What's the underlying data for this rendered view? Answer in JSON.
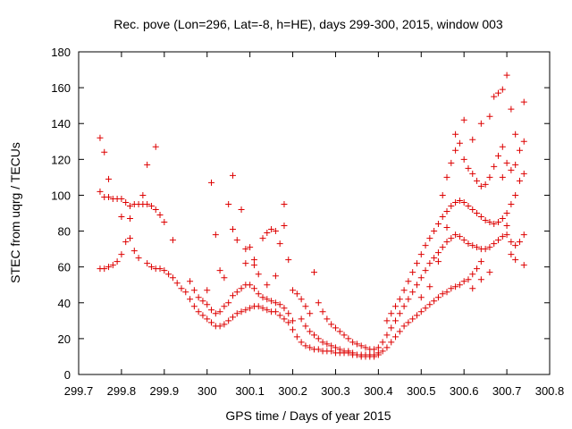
{
  "chart_data": {
    "type": "scatter",
    "title": "Rec. pove (Lon=296, Lat=-8, h=HE), days 299-300, 2015, window 003",
    "xlabel": "GPS time / Days of year 2015",
    "ylabel": "STEC from uqrg / TECUs",
    "xlim": [
      299.7,
      300.8
    ],
    "ylim": [
      0,
      180
    ],
    "xticks": [
      "299.7",
      "299.8",
      "299.9",
      "300",
      "300.1",
      "300.2",
      "300.3",
      "300.4",
      "300.5",
      "300.6",
      "300.7",
      "300.8"
    ],
    "yticks": [
      "0",
      "20",
      "40",
      "60",
      "80",
      "100",
      "120",
      "140",
      "160",
      "180"
    ],
    "grid": false,
    "legend": "none",
    "marker": "+",
    "color": "#dd0000",
    "series": [
      {
        "points": [
          [
            299.75,
            132
          ],
          [
            299.75,
            102
          ],
          [
            299.76,
            99
          ],
          [
            299.76,
            124
          ],
          [
            299.77,
            109
          ],
          [
            299.77,
            99
          ],
          [
            299.78,
            98
          ],
          [
            299.79,
            98
          ],
          [
            299.8,
            98
          ],
          [
            299.81,
            96
          ],
          [
            299.82,
            94
          ],
          [
            299.83,
            95
          ],
          [
            299.84,
            95
          ],
          [
            299.85,
            95
          ],
          [
            299.86,
            95
          ],
          [
            299.87,
            94
          ],
          [
            299.88,
            92
          ],
          [
            299.89,
            89
          ],
          [
            299.9,
            85
          ],
          [
            299.92,
            75
          ],
          [
            299.86,
            117
          ],
          [
            299.88,
            127
          ],
          [
            299.85,
            100
          ],
          [
            299.82,
            87
          ],
          [
            299.8,
            88
          ],
          [
            299.75,
            59
          ],
          [
            299.76,
            59
          ],
          [
            299.77,
            60
          ],
          [
            299.78,
            61
          ],
          [
            299.79,
            63
          ],
          [
            299.8,
            67
          ],
          [
            299.81,
            74
          ],
          [
            299.82,
            76
          ],
          [
            299.83,
            69
          ],
          [
            299.84,
            65
          ],
          [
            299.86,
            62
          ],
          [
            299.87,
            60
          ],
          [
            299.88,
            59
          ],
          [
            299.89,
            59
          ],
          [
            299.9,
            58
          ],
          [
            299.91,
            56
          ],
          [
            299.92,
            54
          ],
          [
            299.93,
            51
          ],
          [
            299.94,
            48
          ],
          [
            299.95,
            46
          ],
          [
            299.96,
            42
          ],
          [
            299.97,
            38
          ],
          [
            299.98,
            35
          ],
          [
            299.99,
            33
          ],
          [
            300.0,
            31
          ],
          [
            300.01,
            29
          ],
          [
            300.02,
            27
          ],
          [
            300.03,
            27
          ],
          [
            300.04,
            28
          ],
          [
            300.05,
            30
          ],
          [
            300.06,
            32
          ],
          [
            300.07,
            34
          ],
          [
            300.08,
            35
          ],
          [
            300.09,
            36
          ],
          [
            300.1,
            37
          ],
          [
            300.11,
            38
          ],
          [
            300.12,
            38
          ],
          [
            300.13,
            37
          ],
          [
            300.14,
            36
          ],
          [
            300.15,
            35
          ],
          [
            300.16,
            35
          ],
          [
            300.17,
            33
          ],
          [
            300.18,
            31
          ],
          [
            300.19,
            29
          ],
          [
            300.2,
            25
          ],
          [
            300.21,
            21
          ],
          [
            299.96,
            52
          ],
          [
            299.97,
            47
          ],
          [
            299.98,
            43
          ],
          [
            299.99,
            41
          ],
          [
            300.0,
            39
          ],
          [
            300.01,
            36
          ],
          [
            300.02,
            34
          ],
          [
            300.03,
            35
          ],
          [
            300.04,
            38
          ],
          [
            300.05,
            40
          ],
          [
            300.06,
            44
          ],
          [
            300.07,
            46
          ],
          [
            300.08,
            48
          ],
          [
            300.09,
            50
          ],
          [
            300.1,
            50
          ],
          [
            300.11,
            48
          ],
          [
            300.12,
            45
          ],
          [
            300.13,
            43
          ],
          [
            300.14,
            42
          ],
          [
            300.15,
            41
          ],
          [
            300.16,
            40
          ],
          [
            300.17,
            39
          ],
          [
            300.18,
            37
          ],
          [
            300.19,
            34
          ],
          [
            300.2,
            30
          ],
          [
            300.0,
            47
          ],
          [
            300.01,
            107
          ],
          [
            300.02,
            78
          ],
          [
            300.03,
            58
          ],
          [
            300.04,
            54
          ],
          [
            300.05,
            95
          ],
          [
            300.06,
            111
          ],
          [
            300.07,
            75
          ],
          [
            300.08,
            92
          ],
          [
            300.09,
            70
          ],
          [
            300.1,
            71
          ],
          [
            300.11,
            64
          ],
          [
            300.11,
            61
          ],
          [
            300.12,
            56
          ],
          [
            300.13,
            76
          ],
          [
            300.14,
            79
          ],
          [
            300.15,
            81
          ],
          [
            300.16,
            80
          ],
          [
            300.17,
            73
          ],
          [
            300.18,
            83
          ],
          [
            300.18,
            95
          ],
          [
            300.19,
            64
          ],
          [
            300.16,
            55
          ],
          [
            300.14,
            50
          ],
          [
            300.09,
            62
          ],
          [
            300.06,
            81
          ],
          [
            300.2,
            47
          ],
          [
            300.21,
            45
          ],
          [
            300.22,
            42
          ],
          [
            300.23,
            38
          ],
          [
            300.24,
            34
          ],
          [
            300.22,
            31
          ],
          [
            300.23,
            27
          ],
          [
            300.24,
            24
          ],
          [
            300.25,
            22
          ],
          [
            300.26,
            20
          ],
          [
            300.27,
            18
          ],
          [
            300.28,
            17
          ],
          [
            300.29,
            16
          ],
          [
            300.3,
            15
          ],
          [
            300.31,
            14
          ],
          [
            300.32,
            13
          ],
          [
            300.33,
            13
          ],
          [
            300.34,
            12
          ],
          [
            300.35,
            11
          ],
          [
            300.36,
            11
          ],
          [
            300.37,
            11
          ],
          [
            300.38,
            11
          ],
          [
            300.39,
            11
          ],
          [
            300.4,
            12
          ],
          [
            300.25,
            57
          ],
          [
            300.26,
            40
          ],
          [
            300.27,
            35
          ],
          [
            300.28,
            31
          ],
          [
            300.29,
            28
          ],
          [
            300.3,
            26
          ],
          [
            300.31,
            24
          ],
          [
            300.32,
            22
          ],
          [
            300.33,
            20
          ],
          [
            300.34,
            18
          ],
          [
            300.35,
            17
          ],
          [
            300.36,
            16
          ],
          [
            300.37,
            15
          ],
          [
            300.38,
            14
          ],
          [
            300.39,
            14
          ],
          [
            300.4,
            15
          ],
          [
            300.22,
            18
          ],
          [
            300.23,
            16
          ],
          [
            300.24,
            15
          ],
          [
            300.25,
            14
          ],
          [
            300.26,
            14
          ],
          [
            300.27,
            13
          ],
          [
            300.28,
            13
          ],
          [
            300.29,
            13
          ],
          [
            300.3,
            12
          ],
          [
            300.31,
            12
          ],
          [
            300.32,
            12
          ],
          [
            300.33,
            12
          ],
          [
            300.34,
            11
          ],
          [
            300.35,
            11
          ],
          [
            300.36,
            10
          ],
          [
            300.37,
            10
          ],
          [
            300.38,
            10
          ],
          [
            300.39,
            10
          ],
          [
            300.4,
            11
          ],
          [
            300.41,
            13
          ],
          [
            300.42,
            15
          ],
          [
            300.43,
            18
          ],
          [
            300.44,
            21
          ],
          [
            300.45,
            24
          ],
          [
            300.46,
            27
          ],
          [
            300.47,
            29
          ],
          [
            300.48,
            31
          ],
          [
            300.49,
            33
          ],
          [
            300.5,
            35
          ],
          [
            300.51,
            37
          ],
          [
            300.52,
            39
          ],
          [
            300.53,
            41
          ],
          [
            300.54,
            43
          ],
          [
            300.55,
            45
          ],
          [
            300.56,
            46
          ],
          [
            300.57,
            48
          ],
          [
            300.58,
            49
          ],
          [
            300.59,
            50
          ],
          [
            300.6,
            52
          ],
          [
            300.61,
            53
          ],
          [
            300.62,
            56
          ],
          [
            300.63,
            59
          ],
          [
            300.64,
            63
          ],
          [
            300.41,
            18
          ],
          [
            300.42,
            22
          ],
          [
            300.43,
            26
          ],
          [
            300.44,
            30
          ],
          [
            300.45,
            34
          ],
          [
            300.46,
            38
          ],
          [
            300.47,
            42
          ],
          [
            300.48,
            46
          ],
          [
            300.49,
            50
          ],
          [
            300.5,
            54
          ],
          [
            300.51,
            58
          ],
          [
            300.52,
            62
          ],
          [
            300.53,
            65
          ],
          [
            300.54,
            68
          ],
          [
            300.55,
            71
          ],
          [
            300.56,
            74
          ],
          [
            300.57,
            76
          ],
          [
            300.58,
            78
          ],
          [
            300.59,
            77
          ],
          [
            300.6,
            75
          ],
          [
            300.61,
            73
          ],
          [
            300.62,
            72
          ],
          [
            300.63,
            71
          ],
          [
            300.64,
            70
          ],
          [
            300.65,
            70
          ],
          [
            300.66,
            71
          ],
          [
            300.67,
            73
          ],
          [
            300.68,
            75
          ],
          [
            300.69,
            77
          ],
          [
            300.7,
            78
          ],
          [
            300.71,
            74
          ],
          [
            300.72,
            72
          ],
          [
            300.73,
            74
          ],
          [
            300.74,
            78
          ],
          [
            300.42,
            30
          ],
          [
            300.43,
            34
          ],
          [
            300.44,
            38
          ],
          [
            300.45,
            42
          ],
          [
            300.46,
            47
          ],
          [
            300.47,
            52
          ],
          [
            300.48,
            57
          ],
          [
            300.49,
            62
          ],
          [
            300.5,
            67
          ],
          [
            300.51,
            72
          ],
          [
            300.52,
            76
          ],
          [
            300.53,
            80
          ],
          [
            300.54,
            84
          ],
          [
            300.55,
            88
          ],
          [
            300.56,
            91
          ],
          [
            300.57,
            94
          ],
          [
            300.58,
            96
          ],
          [
            300.59,
            97
          ],
          [
            300.6,
            96
          ],
          [
            300.61,
            94
          ],
          [
            300.62,
            92
          ],
          [
            300.63,
            90
          ],
          [
            300.64,
            88
          ],
          [
            300.65,
            86
          ],
          [
            300.66,
            85
          ],
          [
            300.67,
            84
          ],
          [
            300.68,
            85
          ],
          [
            300.69,
            87
          ],
          [
            300.7,
            90
          ],
          [
            300.71,
            95
          ],
          [
            300.72,
            100
          ],
          [
            300.73,
            108
          ],
          [
            300.74,
            112
          ],
          [
            300.55,
            100
          ],
          [
            300.56,
            110
          ],
          [
            300.57,
            118
          ],
          [
            300.58,
            125
          ],
          [
            300.59,
            129
          ],
          [
            300.6,
            120
          ],
          [
            300.61,
            115
          ],
          [
            300.62,
            112
          ],
          [
            300.63,
            108
          ],
          [
            300.64,
            105
          ],
          [
            300.65,
            106
          ],
          [
            300.66,
            110
          ],
          [
            300.67,
            116
          ],
          [
            300.68,
            122
          ],
          [
            300.69,
            127
          ],
          [
            300.7,
            118
          ],
          [
            300.71,
            114
          ],
          [
            300.72,
            117
          ],
          [
            300.73,
            125
          ],
          [
            300.74,
            130
          ],
          [
            300.58,
            134
          ],
          [
            300.6,
            142
          ],
          [
            300.62,
            131
          ],
          [
            300.64,
            140
          ],
          [
            300.66,
            144
          ],
          [
            300.67,
            155
          ],
          [
            300.68,
            157
          ],
          [
            300.69,
            159
          ],
          [
            300.7,
            167
          ],
          [
            300.71,
            148
          ],
          [
            300.72,
            134
          ],
          [
            300.74,
            152
          ],
          [
            300.69,
            110
          ],
          [
            300.7,
            83
          ],
          [
            300.71,
            67
          ],
          [
            300.72,
            64
          ],
          [
            300.74,
            61
          ],
          [
            300.66,
            57
          ],
          [
            300.64,
            53
          ],
          [
            300.62,
            48
          ],
          [
            300.56,
            82
          ],
          [
            300.54,
            63
          ],
          [
            300.52,
            49
          ],
          [
            300.5,
            43
          ]
        ]
      }
    ]
  }
}
